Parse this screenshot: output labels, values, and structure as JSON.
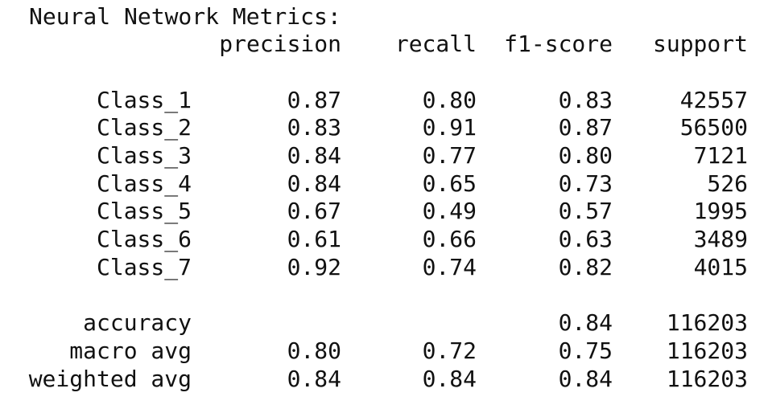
{
  "title": "Neural Network Metrics:",
  "headers": {
    "precision": "precision",
    "recall": "recall",
    "f1": "f1-score",
    "support": "support"
  },
  "classes": [
    {
      "label": "Class_1",
      "precision": "0.87",
      "recall": "0.80",
      "f1": "0.83",
      "support": "42557"
    },
    {
      "label": "Class_2",
      "precision": "0.83",
      "recall": "0.91",
      "f1": "0.87",
      "support": "56500"
    },
    {
      "label": "Class_3",
      "precision": "0.84",
      "recall": "0.77",
      "f1": "0.80",
      "support": "7121"
    },
    {
      "label": "Class_4",
      "precision": "0.84",
      "recall": "0.65",
      "f1": "0.73",
      "support": "526"
    },
    {
      "label": "Class_5",
      "precision": "0.67",
      "recall": "0.49",
      "f1": "0.57",
      "support": "1995"
    },
    {
      "label": "Class_6",
      "precision": "0.61",
      "recall": "0.66",
      "f1": "0.63",
      "support": "3489"
    },
    {
      "label": "Class_7",
      "precision": "0.92",
      "recall": "0.74",
      "f1": "0.82",
      "support": "4015"
    }
  ],
  "summary": {
    "accuracy": {
      "label": "accuracy",
      "f1": "0.84",
      "support": "116203"
    },
    "macro": {
      "label": "macro avg",
      "precision": "0.80",
      "recall": "0.72",
      "f1": "0.75",
      "support": "116203"
    },
    "weighted": {
      "label": "weighted avg",
      "precision": "0.84",
      "recall": "0.84",
      "f1": "0.84",
      "support": "116203"
    }
  }
}
